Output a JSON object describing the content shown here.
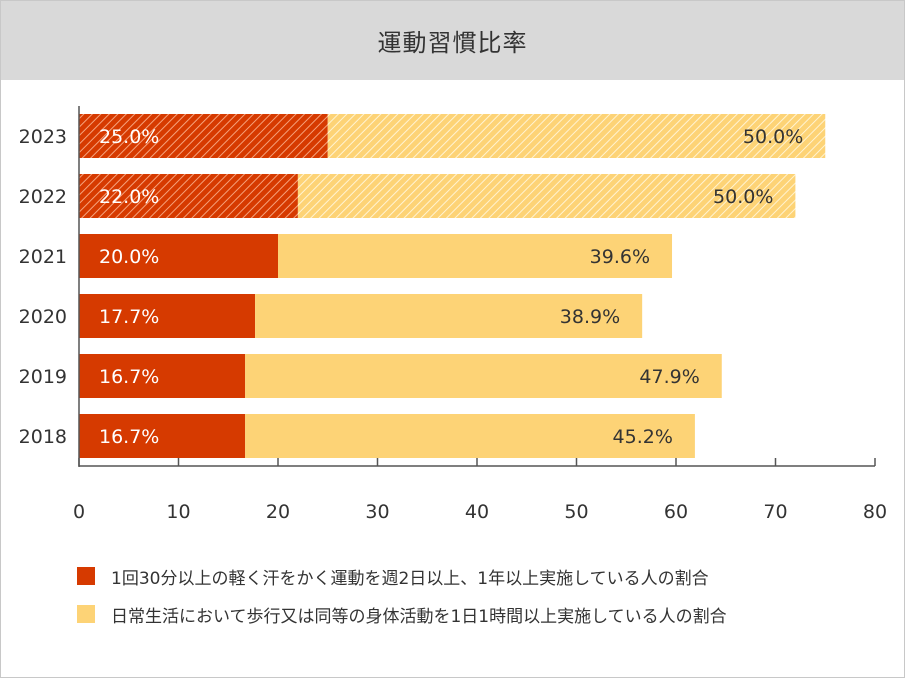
{
  "chart_data": {
    "type": "bar",
    "orientation": "horizontal",
    "stacked": true,
    "title": "運動習慣比率",
    "categories": [
      "2023",
      "2022",
      "2021",
      "2020",
      "2019",
      "2018"
    ],
    "series": [
      {
        "name": "1回30分以上の軽く汗をかく運動を週2日以上、1年以上実施している人の割合",
        "color": "#d63a00",
        "values": [
          25.0,
          22.0,
          20.0,
          17.7,
          16.7,
          16.7
        ],
        "labels": [
          "25.0%",
          "22.0%",
          "20.0%",
          "17.7%",
          "16.7%",
          "16.7%"
        ],
        "hatched": [
          true,
          true,
          false,
          false,
          false,
          false
        ]
      },
      {
        "name": "日常生活において歩行又は同等の身体活動を1日1時間以上実施している人の割合",
        "color": "#fdd376",
        "values": [
          50.0,
          50.0,
          39.6,
          38.9,
          47.9,
          45.2
        ],
        "labels": [
          "50.0%",
          "50.0%",
          "39.6%",
          "38.9%",
          "47.9%",
          "45.2%"
        ],
        "hatched": [
          true,
          true,
          false,
          false,
          false,
          false
        ]
      }
    ],
    "xlim": [
      0,
      80
    ],
    "xticks": [
      0,
      10,
      20,
      30,
      40,
      50,
      60,
      70,
      80
    ],
    "grid": false,
    "legend": "bottom"
  }
}
